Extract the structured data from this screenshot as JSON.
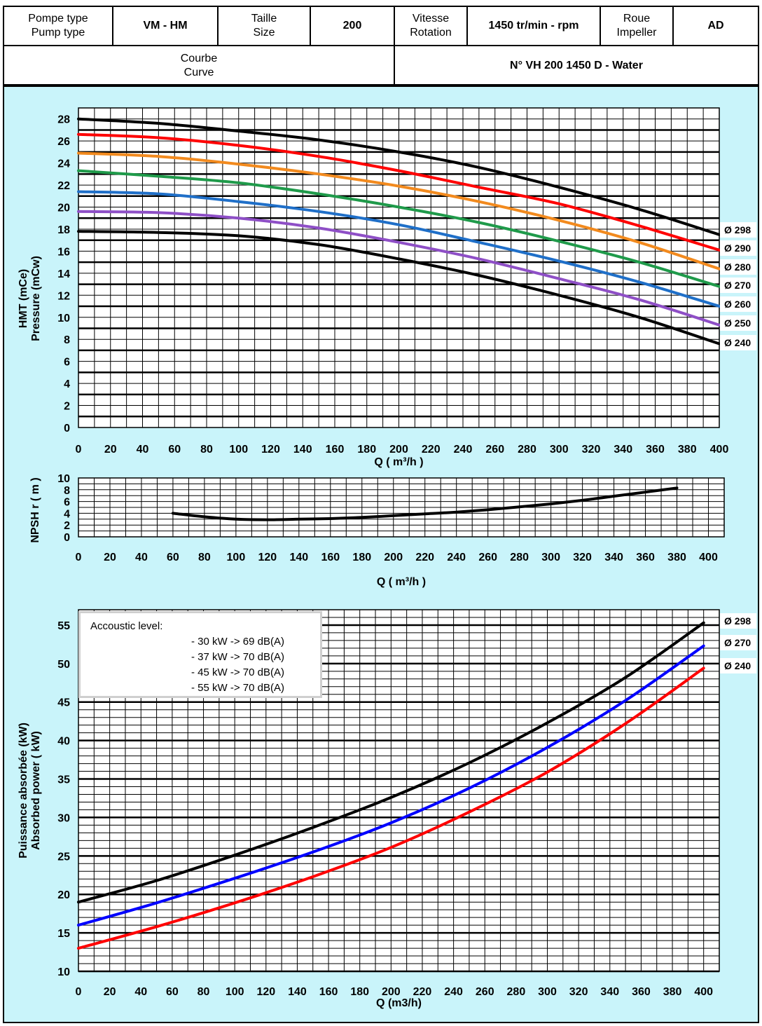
{
  "header": {
    "pump_type_label": [
      "Pompe type",
      "Pump type"
    ],
    "pump_type_value": "VM - HM",
    "size_label": [
      "Taille",
      "Size"
    ],
    "size_value": "200",
    "speed_label": [
      "Vitesse",
      "Rotation"
    ],
    "speed_value": "1450 tr/min - rpm",
    "impeller_label": [
      "Roue",
      "Impeller"
    ],
    "impeller_value": "AD",
    "curve_label": [
      "Courbe",
      "Curve"
    ],
    "curve_value": "N° VH 200 1450 D - Water"
  },
  "acoustic_note": {
    "title": "Accoustic level:",
    "lines": [
      "- 30 kW -> 69 dB(A)",
      "- 37 kW -> 70 dB(A)",
      "- 45 kW -> 70 dB(A)",
      "- 55 kW -> 70 dB(A)"
    ]
  },
  "colors": {
    "panel_bg": "#c9f4fa",
    "black": "#000000",
    "red": "#ff0000",
    "orange": "#f28a1e",
    "green": "#1f9a4a",
    "blue": "#1f6fc8",
    "purple": "#8e4fc6",
    "power_blue": "#0000ff"
  },
  "chart_data": [
    {
      "type": "line",
      "xlabel": "Q ( m³/h )",
      "ylabel": [
        "HMT (mCe)",
        "Pressure (mCw)"
      ],
      "xlim": [
        0,
        400
      ],
      "ylim": [
        0,
        29
      ],
      "xticks": [
        0,
        20,
        40,
        60,
        80,
        100,
        120,
        140,
        160,
        180,
        200,
        220,
        240,
        260,
        280,
        300,
        320,
        340,
        360,
        380,
        400
      ],
      "yticks": [
        0,
        2,
        4,
        6,
        8,
        10,
        12,
        14,
        16,
        18,
        20,
        22,
        24,
        26,
        28
      ],
      "grid": true,
      "series": [
        {
          "name": "Ø 298",
          "color": "#000000",
          "x": [
            0,
            50,
            100,
            150,
            200,
            250,
            300,
            350,
            400
          ],
          "y": [
            28.0,
            27.6,
            26.9,
            26.1,
            25.0,
            23.6,
            21.8,
            19.8,
            17.5
          ]
        },
        {
          "name": "Ø 290",
          "color": "#ff0000",
          "x": [
            0,
            50,
            100,
            150,
            200,
            250,
            300,
            350,
            400
          ],
          "y": [
            26.6,
            26.3,
            25.6,
            24.6,
            23.3,
            21.8,
            20.3,
            18.3,
            16.1
          ]
        },
        {
          "name": "Ø 280",
          "color": "#f28a1e",
          "x": [
            0,
            50,
            100,
            150,
            200,
            250,
            300,
            350,
            400
          ],
          "y": [
            24.9,
            24.6,
            23.9,
            23.0,
            21.9,
            20.5,
            18.8,
            16.8,
            14.4
          ]
        },
        {
          "name": "Ø 270",
          "color": "#1f9a4a",
          "x": [
            0,
            50,
            100,
            150,
            200,
            250,
            300,
            350,
            400
          ],
          "y": [
            23.3,
            22.8,
            22.2,
            21.2,
            20.0,
            18.6,
            16.9,
            15.0,
            12.8
          ]
        },
        {
          "name": "Ø 260",
          "color": "#1f6fc8",
          "x": [
            0,
            50,
            100,
            150,
            200,
            250,
            300,
            350,
            400
          ],
          "y": [
            21.4,
            21.2,
            20.5,
            19.6,
            18.4,
            16.8,
            15.1,
            13.2,
            11.0
          ]
        },
        {
          "name": "Ø 250",
          "color": "#8e4fc6",
          "x": [
            0,
            50,
            100,
            150,
            200,
            250,
            300,
            350,
            400
          ],
          "y": [
            19.6,
            19.5,
            19.0,
            18.1,
            16.8,
            15.3,
            13.5,
            11.6,
            9.3
          ]
        },
        {
          "name": "Ø 240",
          "color": "#000000",
          "x": [
            0,
            50,
            100,
            150,
            200,
            250,
            300,
            350,
            400
          ],
          "y": [
            17.8,
            17.7,
            17.4,
            16.6,
            15.3,
            13.8,
            12.0,
            10.0,
            7.6
          ]
        }
      ]
    },
    {
      "type": "line",
      "xlabel": "Q ( m³/h )",
      "ylabel": "NPSH r ( m )",
      "xlim": [
        0,
        410
      ],
      "ylim": [
        0,
        10
      ],
      "xticks": [
        0,
        20,
        40,
        60,
        80,
        100,
        120,
        140,
        160,
        180,
        200,
        220,
        240,
        260,
        280,
        300,
        320,
        340,
        360,
        380,
        400
      ],
      "yticks": [
        0,
        2,
        4,
        6,
        8,
        10
      ],
      "grid": true,
      "series": [
        {
          "color": "#000000",
          "x": [
            60,
            80,
            100,
            120,
            140,
            160,
            180,
            200,
            220,
            240,
            260,
            280,
            300,
            320,
            340,
            360,
            380
          ],
          "y": [
            4.0,
            3.4,
            3.0,
            2.9,
            3.0,
            3.1,
            3.3,
            3.6,
            3.9,
            4.2,
            4.6,
            5.1,
            5.6,
            6.2,
            6.9,
            7.6,
            8.3
          ]
        }
      ]
    },
    {
      "type": "line",
      "xlabel": "Q (m3/h)",
      "ylabel": [
        "Puissance absorbée (kW)",
        "Absorbed power ( kW)"
      ],
      "xlim": [
        0,
        410
      ],
      "ylim": [
        10,
        57
      ],
      "xticks": [
        0,
        20,
        40,
        60,
        80,
        100,
        120,
        140,
        160,
        180,
        200,
        220,
        240,
        260,
        280,
        300,
        320,
        340,
        360,
        380,
        400
      ],
      "yticks": [
        10,
        15,
        20,
        25,
        30,
        35,
        40,
        45,
        50,
        55
      ],
      "grid": true,
      "series": [
        {
          "name": "Ø 298",
          "color": "#000000",
          "x": [
            0,
            50,
            100,
            150,
            200,
            250,
            300,
            350,
            400
          ],
          "y": [
            19.0,
            21.8,
            25.1,
            28.7,
            32.6,
            37.1,
            42.3,
            48.2,
            55.3
          ]
        },
        {
          "name": "Ø 270",
          "color": "#0000ff",
          "x": [
            0,
            50,
            100,
            150,
            200,
            250,
            300,
            350,
            400
          ],
          "y": [
            16.0,
            18.9,
            22.1,
            25.5,
            29.3,
            33.8,
            39.1,
            45.2,
            52.3
          ]
        },
        {
          "name": "Ø 240",
          "color": "#ff0000",
          "x": [
            0,
            50,
            100,
            150,
            200,
            250,
            300,
            350,
            400
          ],
          "y": [
            13.0,
            15.8,
            18.9,
            22.3,
            26.1,
            30.7,
            35.9,
            42.2,
            49.4
          ]
        }
      ]
    }
  ]
}
